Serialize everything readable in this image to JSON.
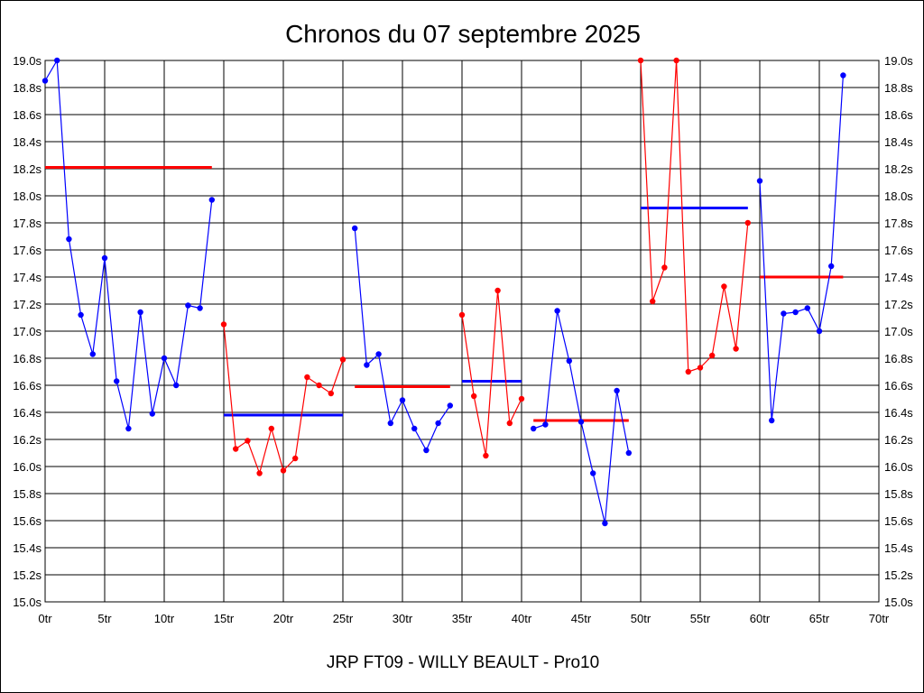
{
  "chart_data": {
    "type": "line",
    "title": "Chronos du 07 septembre 2025",
    "subtitle": "JRP FT09 - WILLY BEAULT - Pro10",
    "xlabel": "",
    "ylabel": "",
    "xlim": [
      0,
      70
    ],
    "ylim": [
      15.0,
      19.0
    ],
    "x_ticks": [
      0,
      5,
      10,
      15,
      20,
      25,
      30,
      35,
      40,
      45,
      50,
      55,
      60,
      65,
      70
    ],
    "x_tick_labels": [
      "0tr",
      "5tr",
      "10tr",
      "15tr",
      "20tr",
      "25tr",
      "30tr",
      "35tr",
      "40tr",
      "45tr",
      "50tr",
      "55tr",
      "60tr",
      "65tr",
      "70tr"
    ],
    "y_ticks": [
      15.0,
      15.2,
      15.4,
      15.6,
      15.8,
      16.0,
      16.2,
      16.4,
      16.6,
      16.8,
      17.0,
      17.2,
      17.4,
      17.6,
      17.8,
      18.0,
      18.2,
      18.4,
      18.6,
      18.8,
      19.0
    ],
    "y_tick_labels": [
      "15.0s",
      "15.2s",
      "15.4s",
      "15.6s",
      "15.8s",
      "16.0s",
      "16.2s",
      "16.4s",
      "16.6s",
      "16.8s",
      "17.0s",
      "17.2s",
      "17.4s",
      "17.6s",
      "17.8s",
      "18.0s",
      "18.2s",
      "18.4s",
      "18.6s",
      "18.8s",
      "19.0s"
    ],
    "grid": true,
    "series": [
      {
        "color": "#0000ff",
        "x": [
          0,
          1,
          2,
          3,
          4,
          5,
          6,
          7,
          8,
          9,
          10,
          11,
          12,
          13,
          14
        ],
        "values": [
          18.85,
          19.0,
          17.68,
          17.12,
          16.83,
          17.54,
          16.63,
          16.28,
          17.14,
          16.39,
          16.8,
          16.6,
          17.19,
          17.17,
          17.97
        ]
      },
      {
        "color": "#ff0000",
        "x": [
          15,
          16,
          17,
          18,
          19,
          20,
          21,
          22,
          23,
          24,
          25
        ],
        "values": [
          17.05,
          16.13,
          16.19,
          15.95,
          16.28,
          15.97,
          16.06,
          16.66,
          16.6,
          16.54,
          16.79
        ]
      },
      {
        "color": "#0000ff",
        "x": [
          26,
          27,
          28,
          29,
          30,
          31,
          32,
          33,
          34
        ],
        "values": [
          17.76,
          16.75,
          16.83,
          16.32,
          16.49,
          16.28,
          16.12,
          16.32,
          16.45
        ]
      },
      {
        "color": "#ff0000",
        "x": [
          35,
          36,
          37,
          38,
          39,
          40
        ],
        "values": [
          17.12,
          16.52,
          16.08,
          17.3,
          16.32,
          16.5
        ]
      },
      {
        "color": "#0000ff",
        "x": [
          41,
          42,
          43,
          44,
          45,
          46,
          47,
          48,
          49
        ],
        "values": [
          16.28,
          16.31,
          17.15,
          16.78,
          16.33,
          15.95,
          15.58,
          16.56,
          16.1
        ]
      },
      {
        "color": "#ff0000",
        "x": [
          50,
          51,
          52,
          53,
          54,
          55,
          56,
          57,
          58,
          59
        ],
        "values": [
          19.0,
          17.22,
          17.47,
          19.0,
          16.7,
          16.73,
          16.82,
          17.33,
          16.87,
          17.8
        ]
      },
      {
        "color": "#0000ff",
        "x": [
          60,
          61,
          62,
          63,
          64,
          65,
          66,
          67
        ],
        "values": [
          18.11,
          16.34,
          17.13,
          17.14,
          17.17,
          17.0,
          17.48,
          18.89
        ]
      }
    ],
    "averages": [
      {
        "color": "#ff0000",
        "x": [
          0,
          14
        ],
        "value": 18.21
      },
      {
        "color": "#0000ff",
        "x": [
          15,
          25
        ],
        "value": 16.38
      },
      {
        "color": "#ff0000",
        "x": [
          26,
          34
        ],
        "value": 16.59
      },
      {
        "color": "#0000ff",
        "x": [
          35,
          40
        ],
        "value": 16.63
      },
      {
        "color": "#ff0000",
        "x": [
          41,
          49
        ],
        "value": 16.34
      },
      {
        "color": "#0000ff",
        "x": [
          50,
          59
        ],
        "value": 17.91
      },
      {
        "color": "#ff0000",
        "x": [
          60,
          67
        ],
        "value": 17.4
      }
    ]
  }
}
